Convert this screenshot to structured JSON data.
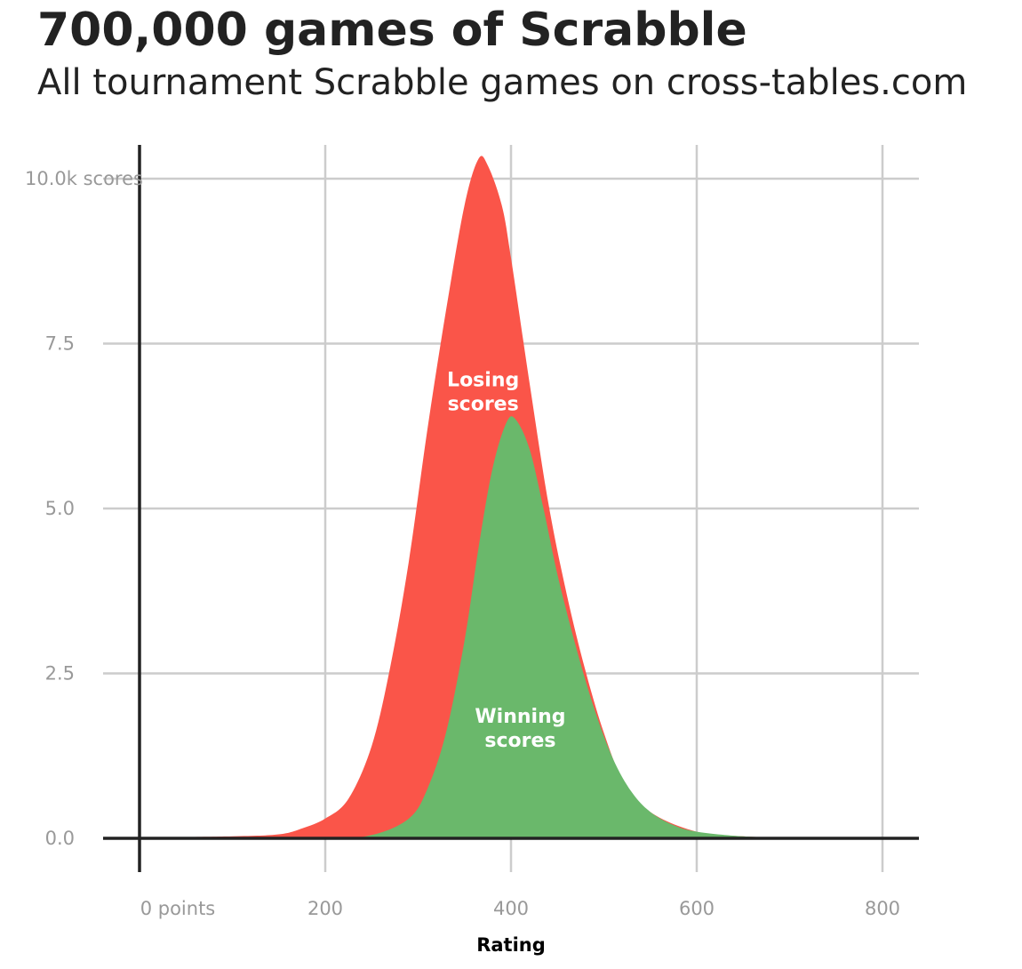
{
  "chart_data": {
    "type": "area",
    "title": "700,000 games of Scrabble",
    "subtitle": "All tournament Scrabble games on cross-tables.com",
    "xlabel": "Rating",
    "ylabel": "",
    "xlim": [
      0,
      840
    ],
    "ylim": [
      0,
      10.4
    ],
    "x_ticks": [
      {
        "value": 0,
        "label": "0 points"
      },
      {
        "value": 200,
        "label": "200"
      },
      {
        "value": 400,
        "label": "400"
      },
      {
        "value": 600,
        "label": "600"
      },
      {
        "value": 800,
        "label": "800"
      }
    ],
    "y_ticks": [
      {
        "value": 0,
        "label": "0.0"
      },
      {
        "value": 2.5,
        "label": "2.5"
      },
      {
        "value": 5,
        "label": "5.0"
      },
      {
        "value": 7.5,
        "label": "7.5"
      },
      {
        "value": 10,
        "label": "10.0k scores"
      }
    ],
    "grid": true,
    "series": [
      {
        "name": "Losing scores",
        "label": [
          "Losing",
          "scores"
        ],
        "color": "#fa5549",
        "label_pos": {
          "x": 370,
          "y": 6.85
        },
        "x": [
          0,
          100,
          150,
          175,
          200,
          225,
          250,
          270,
          290,
          310,
          330,
          350,
          365,
          375,
          390,
          400,
          420,
          440,
          460,
          480,
          500,
          520,
          550,
          600,
          650,
          700,
          800
        ],
        "values": [
          0.01,
          0.03,
          0.06,
          0.15,
          0.3,
          0.6,
          1.4,
          2.6,
          4.2,
          6.2,
          8.0,
          9.6,
          10.3,
          10.2,
          9.6,
          8.8,
          6.9,
          5.1,
          3.7,
          2.55,
          1.6,
          0.9,
          0.4,
          0.1,
          0.03,
          0.01,
          0.0
        ]
      },
      {
        "name": "Winning scores",
        "label": [
          "Winning",
          "scores"
        ],
        "color": "#6ab86b",
        "label_pos": {
          "x": 410,
          "y": 1.75
        },
        "x": [
          0,
          200,
          250,
          290,
          310,
          330,
          350,
          365,
          380,
          395,
          405,
          420,
          435,
          450,
          470,
          490,
          510,
          530,
          550,
          575,
          600,
          650,
          700,
          800
        ],
        "values": [
          0.0,
          0.01,
          0.05,
          0.3,
          0.75,
          1.6,
          3.0,
          4.4,
          5.6,
          6.3,
          6.35,
          5.9,
          5.0,
          4.0,
          2.9,
          1.95,
          1.2,
          0.7,
          0.4,
          0.2,
          0.1,
          0.03,
          0.01,
          0.0
        ]
      }
    ]
  }
}
